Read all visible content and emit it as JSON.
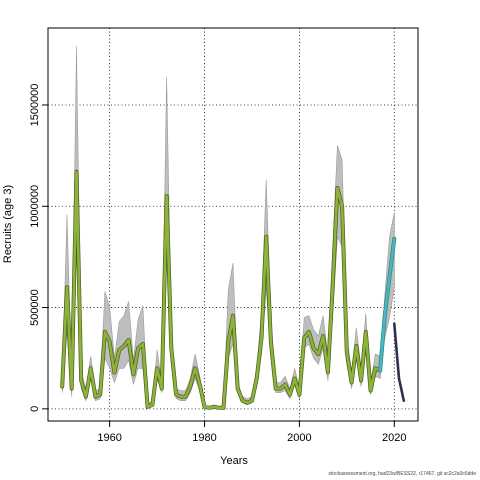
{
  "chart_data": {
    "type": "line",
    "title": "",
    "xlabel": "Years",
    "ylabel": "Recruits (age 3)",
    "xlim": [
      1947,
      2025
    ],
    "ylim": [
      -60000,
      1880000
    ],
    "x_ticks": [
      1960,
      1980,
      2000,
      2020
    ],
    "y_ticks": [
      0,
      500000,
      1000000,
      1500000
    ],
    "y_tick_labels": [
      "0",
      "500000",
      "1000000",
      "1500000"
    ],
    "grid": true,
    "colors": {
      "band": "#bebebe",
      "band_edge": "#9a9a9a",
      "main_line": "#8db33a",
      "main_line_shadow": "#4a5e1e",
      "recent_line": "#4ab5c4",
      "recent_line_shadow": "#2a8a7a",
      "projection_line": "#2e2d7a",
      "forecast_line": "#333333"
    },
    "series": [
      {
        "years": [
          1950,
          1951,
          1952,
          1953,
          1954,
          1955,
          1956,
          1957,
          1958,
          1959,
          1960,
          1961,
          1962,
          1963,
          1964,
          1965,
          1966,
          1967,
          1968,
          1969,
          1970,
          1971,
          1972,
          1973,
          1974,
          1975,
          1976,
          1977,
          1978,
          1979,
          1980,
          1981,
          1982,
          1983,
          1984,
          1985,
          1986,
          1987,
          1988,
          1989,
          1990,
          1991,
          1992,
          1993,
          1994,
          1995,
          1996,
          1997,
          1998,
          1999,
          2000,
          2001,
          2002,
          2003,
          2004,
          2005,
          2006,
          2007,
          2008,
          2009,
          2010,
          2011,
          2012,
          2013,
          2014,
          2015,
          2016,
          2017
        ],
        "values": [
          110000,
          600000,
          100000,
          1170000,
          140000,
          60000,
          200000,
          60000,
          70000,
          380000,
          330000,
          180000,
          290000,
          310000,
          340000,
          170000,
          300000,
          320000,
          10000,
          20000,
          200000,
          100000,
          1050000,
          300000,
          70000,
          60000,
          60000,
          110000,
          200000,
          120000,
          10000,
          5000,
          10000,
          5000,
          5000,
          330000,
          460000,
          100000,
          40000,
          30000,
          40000,
          150000,
          350000,
          850000,
          330000,
          100000,
          100000,
          120000,
          70000,
          150000,
          70000,
          350000,
          380000,
          300000,
          270000,
          360000,
          180000,
          600000,
          1090000,
          1000000,
          280000,
          130000,
          310000,
          140000,
          380000,
          90000,
          200000,
          190000
        ],
        "low": [
          80000,
          380000,
          60000,
          800000,
          100000,
          40000,
          150000,
          40000,
          50000,
          250000,
          200000,
          130000,
          200000,
          200000,
          240000,
          120000,
          200000,
          200000,
          5000,
          10000,
          150000,
          80000,
          880000,
          250000,
          50000,
          40000,
          40000,
          80000,
          150000,
          90000,
          5000,
          2000,
          5000,
          2000,
          2000,
          250000,
          320000,
          80000,
          30000,
          20000,
          30000,
          110000,
          270000,
          600000,
          250000,
          80000,
          80000,
          90000,
          50000,
          120000,
          50000,
          300000,
          320000,
          250000,
          220000,
          300000,
          140000,
          450000,
          850000,
          800000,
          220000,
          100000,
          250000,
          110000,
          320000,
          70000,
          160000,
          150000
        ],
        "high": [
          140000,
          960000,
          140000,
          1790000,
          190000,
          90000,
          260000,
          90000,
          100000,
          580000,
          500000,
          250000,
          430000,
          460000,
          530000,
          240000,
          440000,
          510000,
          20000,
          40000,
          290000,
          130000,
          1640000,
          380000,
          100000,
          90000,
          90000,
          150000,
          270000,
          160000,
          20000,
          10000,
          20000,
          10000,
          10000,
          590000,
          720000,
          130000,
          60000,
          50000,
          60000,
          200000,
          480000,
          1130000,
          450000,
          130000,
          130000,
          160000,
          100000,
          200000,
          100000,
          450000,
          460000,
          390000,
          360000,
          460000,
          260000,
          780000,
          1300000,
          1230000,
          360000,
          180000,
          400000,
          200000,
          470000,
          120000,
          270000,
          260000
        ]
      },
      {
        "years": [
          2017,
          2018,
          2019,
          2020
        ],
        "values": [
          190000,
          460000,
          650000,
          840000
        ],
        "low": [
          150000,
          350000,
          450000,
          600000
        ],
        "high": [
          260000,
          560000,
          850000,
          970000
        ]
      },
      {
        "years": [
          2020,
          2021,
          2022
        ],
        "values": [
          420000,
          150000,
          40000
        ]
      }
    ],
    "footer_note": "stockassessment.org, had23w/BESS22, r17467, git sc2c2a0c6dde"
  }
}
